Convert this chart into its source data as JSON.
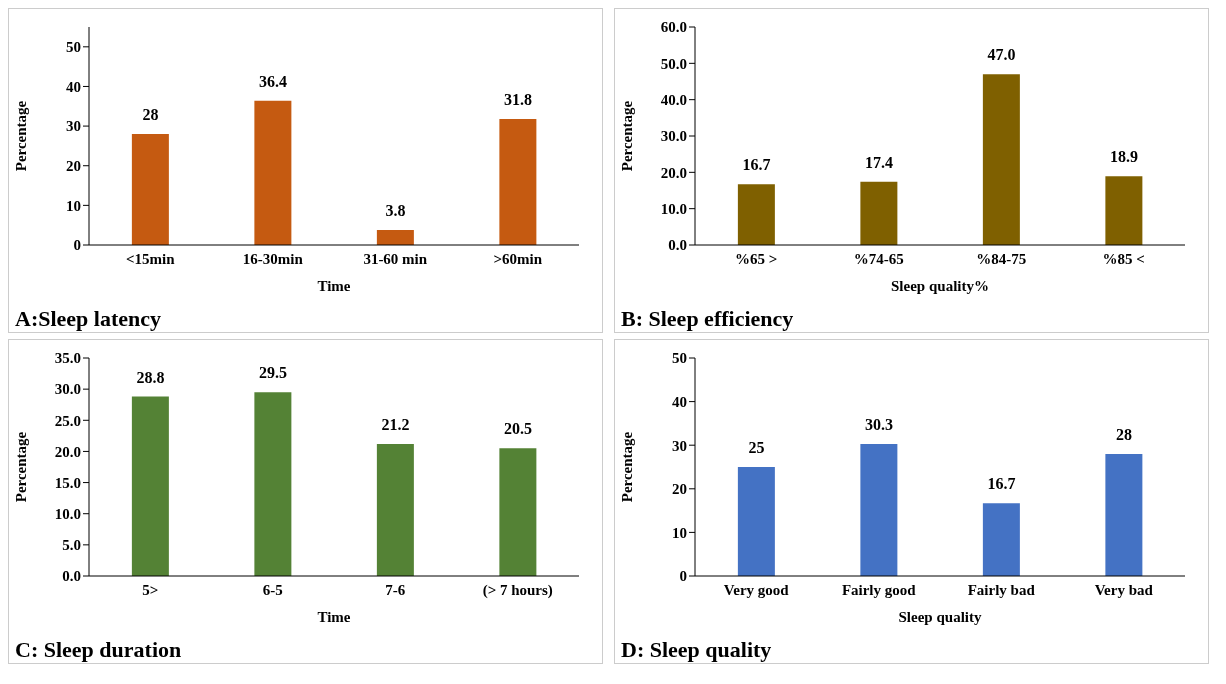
{
  "chart_data": [
    {
      "type": "bar",
      "title": "A:Sleep latency",
      "xlabel": "Time",
      "ylabel": "Percentage",
      "categories": [
        "<15min",
        "16-30min",
        "31-60 min",
        ">60min"
      ],
      "values": [
        28,
        36.4,
        3.8,
        31.8
      ],
      "color": "#c55a11",
      "ylim": [
        0,
        55
      ],
      "yticks": [
        0,
        10,
        20,
        30,
        40,
        50
      ],
      "data_labels": true,
      "grid": false,
      "legend": false
    },
    {
      "type": "bar",
      "title": "B: Sleep efficiency",
      "xlabel": "Sleep quality%",
      "ylabel": "Percentage",
      "categories": [
        "%65 >",
        "%74-65",
        "%84-75",
        "%85 <"
      ],
      "values": [
        16.7,
        17.4,
        47.0,
        18.9
      ],
      "value_labels": [
        "16.7",
        "17.4",
        "47.0",
        "18.9"
      ],
      "color": "#7f6000",
      "ylim": [
        0,
        60
      ],
      "yticks": [
        {
          "value": 0,
          "label": "0.0"
        },
        {
          "value": 10,
          "label": "10.0"
        },
        {
          "value": 20,
          "label": "20.0"
        },
        {
          "value": 30,
          "label": "30.0"
        },
        {
          "value": 40,
          "label": "40.0"
        },
        {
          "value": 50,
          "label": "50.0"
        },
        {
          "value": 60,
          "label": "60.0"
        }
      ],
      "grid": false,
      "legend": false
    },
    {
      "type": "bar",
      "title": "C: Sleep duration",
      "xlabel": "Time",
      "ylabel": "Percentage",
      "categories": [
        "5>",
        "6-5",
        "7-6",
        "(> 7 hours)"
      ],
      "values": [
        28.8,
        29.5,
        21.2,
        20.5
      ],
      "color": "#548235",
      "ylim": [
        0,
        35
      ],
      "yticks": [
        {
          "value": 0,
          "label": "0.0"
        },
        {
          "value": 5,
          "label": "5.0"
        },
        {
          "value": 10,
          "label": "10.0"
        },
        {
          "value": 15,
          "label": "15.0"
        },
        {
          "value": 20,
          "label": "20.0"
        },
        {
          "value": 25,
          "label": "25.0"
        },
        {
          "value": 30,
          "label": "30.0"
        },
        {
          "value": 35,
          "label": "35.0"
        }
      ],
      "data_labels": true,
      "grid": false,
      "legend": false
    },
    {
      "type": "bar",
      "title": "D: Sleep quality",
      "xlabel": "Sleep quality",
      "ylabel": "Percentage",
      "categories": [
        "Very good",
        "Fairly good",
        "Fairly bad",
        "Very bad"
      ],
      "values": [
        25,
        30.3,
        16.7,
        28
      ],
      "color": "#4472c4",
      "ylim": [
        0,
        50
      ],
      "yticks": [
        0,
        10,
        20,
        30,
        40,
        50
      ],
      "data_labels": true,
      "grid": false,
      "legend": false
    }
  ]
}
